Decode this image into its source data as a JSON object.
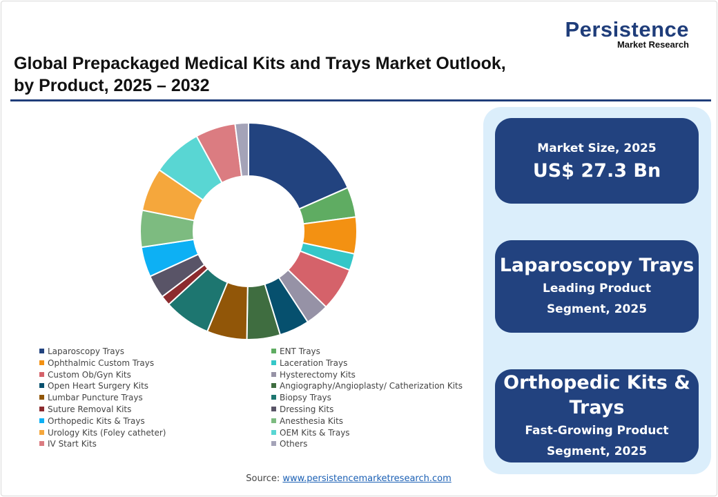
{
  "logo": {
    "main": "Persistence",
    "sub": "Market Research"
  },
  "title": {
    "line1": "Global Prepackaged Medical Kits and Trays Market Outlook,",
    "line2": "by Product, 2025 – 2032"
  },
  "chart_data": {
    "type": "pie",
    "donut": true,
    "title": "Global Prepackaged Medical Kits and Trays Market Outlook, by Product, 2025 – 2032",
    "unit": "approximate share (%)",
    "categories": [
      "Laparoscopy Trays",
      "ENT Trays",
      "Ophthalmic Custom Trays",
      "Laceration Trays",
      "Custom Ob/Gyn Kits",
      "Hysterectomy Kits",
      "Open Heart Surgery Kits",
      "Angiography/Angioplasty/ Catherization Kits",
      "Lumbar Puncture Trays",
      "Biopsy Trays",
      "Suture Removal Kits",
      "Dressing Kits",
      "Orthopedic Kits & Trays",
      "Anesthesia Kits",
      "Urology Kits (Foley catheter)",
      "OEM Kits & Trays",
      "IV Start Kits",
      "Others"
    ],
    "values": [
      18.5,
      4.5,
      5.5,
      2.5,
      6.5,
      3.5,
      4.5,
      5,
      6,
      7,
      1.5,
      3.5,
      4.5,
      5.5,
      6.5,
      7.5,
      6,
      2
    ],
    "colors": [
      "#22437f",
      "#5fac62",
      "#f39112",
      "#35c7c8",
      "#d5626a",
      "#9692a6",
      "#06506e",
      "#3f6d40",
      "#915608",
      "#1d7670",
      "#8c2b2e",
      "#595467",
      "#0db0f4",
      "#7dbb80",
      "#f5a73c",
      "#59d6d3",
      "#db7c81",
      "#a4a3b8"
    ],
    "legend_placement": "bottom"
  },
  "panel": {
    "box1": {
      "label": "Market Size, 2025",
      "value": "US$ 27.3 Bn"
    },
    "box2": {
      "value": "Laparoscopy Trays",
      "label1": "Leading Product",
      "label2": "Segment, 2025"
    },
    "box3": {
      "value1": "Orthopedic Kits &",
      "value2": "Trays",
      "label1": "Fast-Growing Product",
      "label2": "Segment, 2025"
    }
  },
  "source": {
    "label": "Source:",
    "link": "www.persistencemarketresearch.com"
  }
}
